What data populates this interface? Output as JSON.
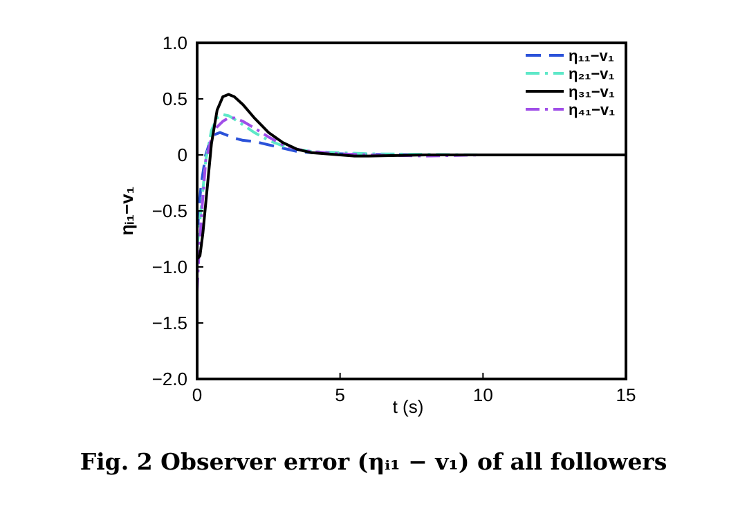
{
  "caption": "Fig. 2  Observer error (ηᵢ₁ − v₁) of all followers",
  "chart_data": {
    "type": "line",
    "title": "",
    "xlabel": "t (s)",
    "ylabel": "ηᵢ₁−v₁",
    "xlim": [
      0,
      15
    ],
    "ylim": [
      -2.0,
      1.0
    ],
    "xticks": [
      0,
      5,
      10,
      15
    ],
    "xtick_labels": [
      "0",
      "5",
      "10",
      "15"
    ],
    "yticks": [
      1.0,
      0.5,
      0,
      -0.5,
      -1.0,
      -1.5,
      -2.0
    ],
    "ytick_labels": [
      "1.0",
      "0.5",
      "0",
      "−0.5",
      "−1.0",
      "−1.5",
      "−2.0"
    ],
    "grid": false,
    "legend_position": "top-right",
    "series": [
      {
        "name": "η₁₁−v₁",
        "color": "#2b52d9",
        "dash": "dashed",
        "x": [
          0,
          0.05,
          0.15,
          0.3,
          0.45,
          0.6,
          0.8,
          1.0,
          1.3,
          1.6,
          2.0,
          2.5,
          3.0,
          3.5,
          4.0,
          5.0,
          6.0,
          8.0,
          10.0,
          12.0,
          15.0
        ],
        "y": [
          -0.85,
          -0.5,
          -0.25,
          0.0,
          0.12,
          0.18,
          0.2,
          0.18,
          0.15,
          0.13,
          0.12,
          0.09,
          0.06,
          0.03,
          0.02,
          0.01,
          0.005,
          0.0,
          0.0,
          0.0,
          0.0
        ]
      },
      {
        "name": "η₂₁−v₁",
        "color": "#5ee8c8",
        "dash": "dashdot",
        "x": [
          0,
          0.05,
          0.15,
          0.3,
          0.5,
          0.7,
          0.9,
          1.1,
          1.3,
          1.6,
          2.0,
          2.5,
          3.0,
          3.5,
          4.0,
          5.0,
          6.0,
          8.0,
          10.0,
          12.0,
          15.0
        ],
        "y": [
          -0.82,
          -0.7,
          -0.45,
          -0.05,
          0.22,
          0.33,
          0.36,
          0.35,
          0.32,
          0.27,
          0.2,
          0.13,
          0.08,
          0.05,
          0.03,
          0.02,
          0.01,
          0.005,
          0.0,
          0.0,
          0.0
        ]
      },
      {
        "name": "η₃₁−v₁",
        "color": "#000000",
        "dash": "solid",
        "x": [
          0,
          0.1,
          0.2,
          0.35,
          0.5,
          0.7,
          0.9,
          1.1,
          1.3,
          1.6,
          2.0,
          2.5,
          3.0,
          3.5,
          4.0,
          4.5,
          5.0,
          5.5,
          6.0,
          8.0,
          10.0,
          12.0,
          15.0
        ],
        "y": [
          -0.93,
          -0.9,
          -0.7,
          -0.3,
          0.1,
          0.4,
          0.52,
          0.54,
          0.52,
          0.45,
          0.33,
          0.2,
          0.11,
          0.05,
          0.02,
          0.01,
          0.0,
          -0.01,
          -0.01,
          0.0,
          0.0,
          0.0,
          0.0
        ]
      },
      {
        "name": "η₄₁−v₁",
        "color": "#a04ee8",
        "dash": "dashdot",
        "x": [
          0,
          0.05,
          0.15,
          0.3,
          0.5,
          0.7,
          0.9,
          1.1,
          1.3,
          1.6,
          2.0,
          2.5,
          3.0,
          3.5,
          4.0,
          5.0,
          6.0,
          8.0,
          10.0,
          12.0,
          15.0
        ],
        "y": [
          -1.22,
          -0.95,
          -0.55,
          -0.05,
          0.15,
          0.25,
          0.3,
          0.33,
          0.33,
          0.3,
          0.24,
          0.16,
          0.09,
          0.05,
          0.03,
          0.01,
          0.0,
          -0.01,
          0.0,
          0.0,
          0.0
        ]
      }
    ]
  }
}
